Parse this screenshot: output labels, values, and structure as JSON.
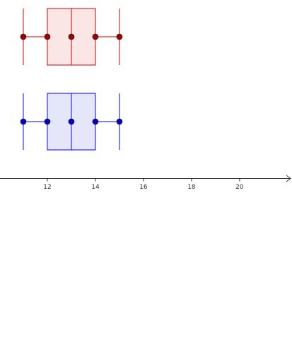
{
  "chart_data": {
    "type": "box",
    "xlim": [
      10.03,
      22.18
    ],
    "xticks": [
      12,
      14,
      16,
      18,
      20
    ],
    "boxes": [
      {
        "color": "#cc0000",
        "fill": "#fbe6e6",
        "point_color": "#a00000",
        "min": 11,
        "q1": 12,
        "median": 13,
        "q3": 14,
        "max": 15
      },
      {
        "color": "#0000ff",
        "fill": "#e6e6fb",
        "point_color": "#0000cc",
        "min": 11,
        "q1": 12,
        "median": 13,
        "q3": 14,
        "max": 15
      }
    ]
  }
}
